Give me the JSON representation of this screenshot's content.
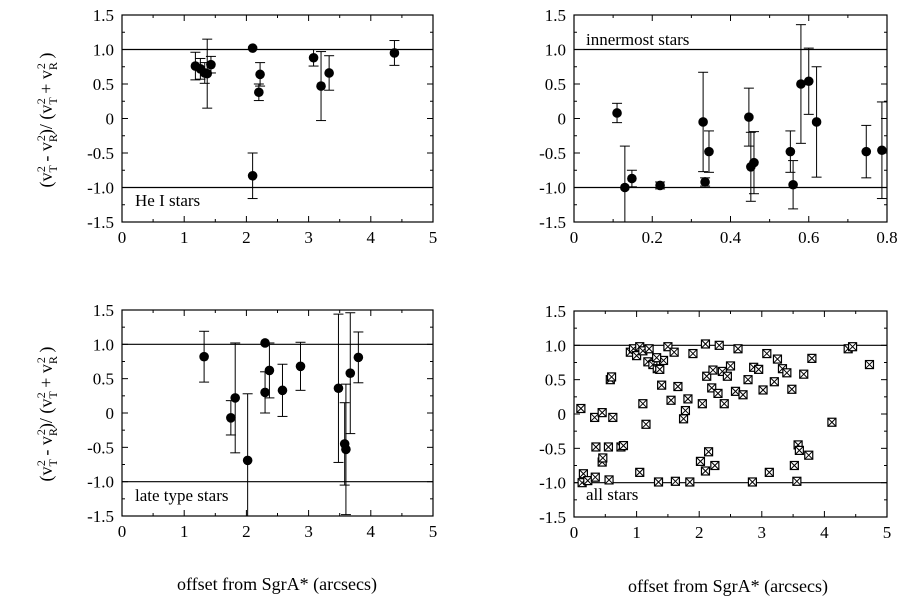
{
  "x_axis_label": "offset from SgrA* (arcsecs)",
  "y_axis_label": {
    "num_a": "v",
    "num_a_sub": "T",
    "num_a_sup": "2",
    "num_op": " - ",
    "num_b": "v",
    "num_b_sub": "R",
    "num_b_sup": "2",
    "den_a": "v",
    "den_a_sub": "T",
    "den_a_sup": "2",
    "den_op": " + ",
    "den_b": "v",
    "den_b_sub": "R",
    "den_b_sup": "2"
  },
  "chart_data": [
    {
      "type": "scatter",
      "annotation": "He I stars",
      "marker": "filled-circle",
      "xlim": [
        0,
        5
      ],
      "ylim": [
        -1.5,
        1.5
      ],
      "xticks": [
        "0",
        "1",
        "2",
        "3",
        "4",
        "5"
      ],
      "yticks": [
        "1.5",
        "1.0",
        "0.5",
        "0",
        "-0.5",
        "-1.0",
        "-1.5"
      ],
      "reference_lines": [
        1.0,
        -1.0
      ],
      "points": [
        {
          "x": 1.18,
          "y": 0.76,
          "err": 0.2
        },
        {
          "x": 1.26,
          "y": 0.72,
          "err": 0.15
        },
        {
          "x": 1.33,
          "y": 0.66,
          "err": 0.15
        },
        {
          "x": 1.37,
          "y": 0.65,
          "err": 0.5
        },
        {
          "x": 1.43,
          "y": 0.78,
          "err": 0.12
        },
        {
          "x": 2.1,
          "y": 1.02,
          "err": 0
        },
        {
          "x": 2.1,
          "y": -0.83,
          "err": 0.33
        },
        {
          "x": 2.2,
          "y": 0.38,
          "err": 0.12
        },
        {
          "x": 2.22,
          "y": 0.64,
          "err": 0.17
        },
        {
          "x": 3.08,
          "y": 0.88,
          "err": 0.12
        },
        {
          "x": 3.2,
          "y": 0.47,
          "err": 0.5
        },
        {
          "x": 3.33,
          "y": 0.66,
          "err": 0.25
        },
        {
          "x": 4.38,
          "y": 0.95,
          "err": 0.18
        }
      ]
    },
    {
      "type": "scatter",
      "annotation": "innermost stars",
      "marker": "filled-circle",
      "xlim": [
        0,
        0.8
      ],
      "ylim": [
        -1.5,
        1.5
      ],
      "xticks": [
        "0",
        "0.2",
        "0.4",
        "0.6",
        "0.8"
      ],
      "yticks": [
        "1.5",
        "1.0",
        "0.5",
        "0",
        "-0.5",
        "-1.0",
        "-1.5"
      ],
      "reference_lines": [
        1.0,
        -1.0
      ],
      "points": [
        {
          "x": 0.11,
          "y": 0.08,
          "err": 0.14
        },
        {
          "x": 0.13,
          "y": -1.0,
          "err": 0.6
        },
        {
          "x": 0.148,
          "y": -0.87,
          "err": 0.12
        },
        {
          "x": 0.22,
          "y": -0.97,
          "err": 0.05
        },
        {
          "x": 0.33,
          "y": -0.05,
          "err": 0.72
        },
        {
          "x": 0.335,
          "y": -0.92,
          "err": 0.06
        },
        {
          "x": 0.345,
          "y": -0.48,
          "err": 0.3
        },
        {
          "x": 0.447,
          "y": 0.02,
          "err": 0.42
        },
        {
          "x": 0.452,
          "y": -0.7,
          "err": 0.5
        },
        {
          "x": 0.46,
          "y": -0.64,
          "err": 0.45
        },
        {
          "x": 0.553,
          "y": -0.48,
          "err": 0.3
        },
        {
          "x": 0.56,
          "y": -0.96,
          "err": 0.35
        },
        {
          "x": 0.58,
          "y": 0.5,
          "err": 0.86
        },
        {
          "x": 0.6,
          "y": 0.54,
          "err": 0.48
        },
        {
          "x": 0.62,
          "y": -0.05,
          "err": 0.8
        },
        {
          "x": 0.747,
          "y": -0.48,
          "err": 0.38
        },
        {
          "x": 0.787,
          "y": -0.46,
          "err": 0.7
        }
      ]
    },
    {
      "type": "scatter",
      "annotation": "late type stars",
      "marker": "filled-circle",
      "xlim": [
        0,
        5
      ],
      "ylim": [
        -1.5,
        1.5
      ],
      "xticks": [
        "0",
        "1",
        "2",
        "3",
        "4",
        "5"
      ],
      "yticks": [
        "1.5",
        "1.0",
        "0.5",
        "0",
        "-0.5",
        "-1.0",
        "-1.5"
      ],
      "reference_lines": [
        1.0,
        -1.0
      ],
      "points": [
        {
          "x": 1.32,
          "y": 0.82,
          "err": 0.37
        },
        {
          "x": 1.75,
          "y": -0.07,
          "err": 0.25
        },
        {
          "x": 1.82,
          "y": 0.22,
          "err": 0.8
        },
        {
          "x": 2.02,
          "y": -0.69,
          "err": 0.97
        },
        {
          "x": 2.3,
          "y": 1.02,
          "err": 0
        },
        {
          "x": 2.3,
          "y": 0.3,
          "err": 0.3
        },
        {
          "x": 2.37,
          "y": 0.62,
          "err": 0.4
        },
        {
          "x": 2.58,
          "y": 0.33,
          "err": 0.38
        },
        {
          "x": 2.87,
          "y": 0.68,
          "err": 0.35
        },
        {
          "x": 3.48,
          "y": 0.36,
          "err": 1.08
        },
        {
          "x": 3.58,
          "y": -0.45,
          "err": 0.6
        },
        {
          "x": 3.6,
          "y": -0.53,
          "err": 0.95
        },
        {
          "x": 3.67,
          "y": 0.58,
          "err": 0.88
        },
        {
          "x": 3.8,
          "y": 0.81,
          "err": 0.37
        }
      ]
    },
    {
      "type": "scatter",
      "annotation": "all stars",
      "marker": "crossed-square",
      "xlim": [
        0,
        5
      ],
      "ylim": [
        -1.5,
        1.5
      ],
      "xticks": [
        "0",
        "1",
        "2",
        "3",
        "4",
        "5"
      ],
      "yticks": [
        "1.5",
        "1.0",
        "0.5",
        "0",
        "-0.5",
        "-1.0",
        "-1.5"
      ],
      "reference_lines": [
        1.0,
        -1.0
      ],
      "points": [
        {
          "x": 0.11,
          "y": 0.08
        },
        {
          "x": 0.13,
          "y": -1.0
        },
        {
          "x": 0.15,
          "y": -0.87
        },
        {
          "x": 0.22,
          "y": -0.97
        },
        {
          "x": 0.33,
          "y": -0.05
        },
        {
          "x": 0.34,
          "y": -0.92
        },
        {
          "x": 0.35,
          "y": -0.48
        },
        {
          "x": 0.45,
          "y": 0.02
        },
        {
          "x": 0.45,
          "y": -0.7
        },
        {
          "x": 0.46,
          "y": -0.64
        },
        {
          "x": 0.55,
          "y": -0.48
        },
        {
          "x": 0.56,
          "y": -0.96
        },
        {
          "x": 0.58,
          "y": 0.5
        },
        {
          "x": 0.6,
          "y": 0.54
        },
        {
          "x": 0.62,
          "y": -0.05
        },
        {
          "x": 0.75,
          "y": -0.48
        },
        {
          "x": 0.79,
          "y": -0.46
        },
        {
          "x": 0.9,
          "y": 0.9
        },
        {
          "x": 0.95,
          "y": 0.95
        },
        {
          "x": 1.0,
          "y": 0.85
        },
        {
          "x": 1.05,
          "y": 0.98
        },
        {
          "x": 1.1,
          "y": 0.92
        },
        {
          "x": 1.18,
          "y": 0.76
        },
        {
          "x": 1.2,
          "y": 0.95
        },
        {
          "x": 1.26,
          "y": 0.72
        },
        {
          "x": 1.33,
          "y": 0.66
        },
        {
          "x": 1.37,
          "y": 0.65
        },
        {
          "x": 1.43,
          "y": 0.78
        },
        {
          "x": 1.5,
          "y": 0.98
        },
        {
          "x": 1.6,
          "y": 0.9
        },
        {
          "x": 1.05,
          "y": -0.85
        },
        {
          "x": 1.35,
          "y": -0.99
        },
        {
          "x": 1.1,
          "y": 0.15
        },
        {
          "x": 1.15,
          "y": -0.15
        },
        {
          "x": 1.32,
          "y": 0.82
        },
        {
          "x": 1.4,
          "y": 0.42
        },
        {
          "x": 1.55,
          "y": 0.2
        },
        {
          "x": 1.62,
          "y": -0.98
        },
        {
          "x": 1.66,
          "y": 0.4
        },
        {
          "x": 1.75,
          "y": -0.07
        },
        {
          "x": 1.78,
          "y": 0.05
        },
        {
          "x": 1.82,
          "y": 0.22
        },
        {
          "x": 1.85,
          "y": -0.99
        },
        {
          "x": 1.9,
          "y": 0.88
        },
        {
          "x": 2.02,
          "y": -0.69
        },
        {
          "x": 2.05,
          "y": 0.15
        },
        {
          "x": 2.1,
          "y": 1.02
        },
        {
          "x": 2.1,
          "y": -0.83
        },
        {
          "x": 2.12,
          "y": 0.55
        },
        {
          "x": 2.15,
          "y": -0.55
        },
        {
          "x": 2.2,
          "y": 0.38
        },
        {
          "x": 2.22,
          "y": 0.64
        },
        {
          "x": 2.25,
          "y": -0.75
        },
        {
          "x": 2.3,
          "y": 0.3
        },
        {
          "x": 2.32,
          "y": 1.0
        },
        {
          "x": 2.37,
          "y": 0.62
        },
        {
          "x": 2.4,
          "y": 0.15
        },
        {
          "x": 2.45,
          "y": 0.55
        },
        {
          "x": 2.5,
          "y": 0.7
        },
        {
          "x": 2.58,
          "y": 0.33
        },
        {
          "x": 2.62,
          "y": 0.95
        },
        {
          "x": 2.7,
          "y": 0.28
        },
        {
          "x": 2.78,
          "y": 0.5
        },
        {
          "x": 2.85,
          "y": -0.99
        },
        {
          "x": 2.87,
          "y": 0.68
        },
        {
          "x": 2.95,
          "y": 0.65
        },
        {
          "x": 3.02,
          "y": 0.35
        },
        {
          "x": 3.08,
          "y": 0.88
        },
        {
          "x": 3.12,
          "y": -0.85
        },
        {
          "x": 3.2,
          "y": 0.47
        },
        {
          "x": 3.25,
          "y": 0.8
        },
        {
          "x": 3.33,
          "y": 0.66
        },
        {
          "x": 3.4,
          "y": 0.6
        },
        {
          "x": 3.48,
          "y": 0.36
        },
        {
          "x": 3.52,
          "y": -0.75
        },
        {
          "x": 3.56,
          "y": -0.98
        },
        {
          "x": 3.58,
          "y": -0.45
        },
        {
          "x": 3.6,
          "y": -0.53
        },
        {
          "x": 3.67,
          "y": 0.58
        },
        {
          "x": 3.75,
          "y": -0.6
        },
        {
          "x": 3.8,
          "y": 0.81
        },
        {
          "x": 4.12,
          "y": -0.12
        },
        {
          "x": 4.38,
          "y": 0.95
        },
        {
          "x": 4.45,
          "y": 0.98
        },
        {
          "x": 4.72,
          "y": 0.72
        }
      ]
    }
  ]
}
